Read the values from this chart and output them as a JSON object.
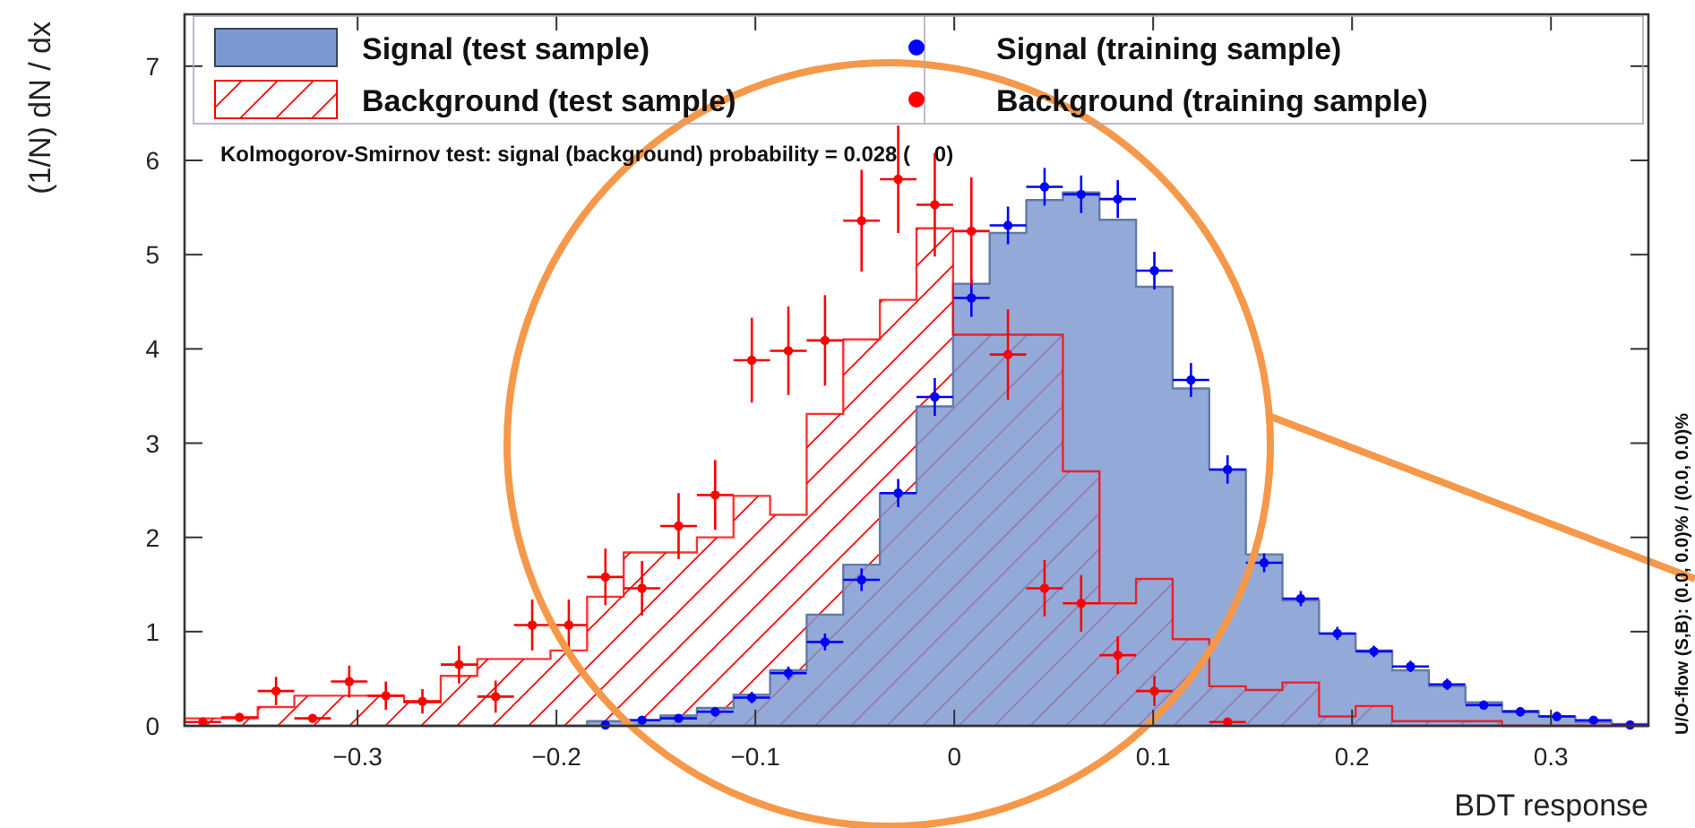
{
  "chart_data": {
    "type": "histogram",
    "xlabel": "BDT response",
    "ylabel": "(1/N) dN / dx",
    "bins": [
      -0.387,
      -0.3686,
      -0.3502,
      -0.3318,
      -0.3134,
      -0.295,
      -0.2766,
      -0.2582,
      -0.2398,
      -0.2214,
      -0.203,
      -0.1846,
      -0.1662,
      -0.1478,
      -0.1294,
      -0.111,
      -0.0926,
      -0.0742,
      -0.0558,
      -0.0374,
      -0.019,
      -0.0006,
      0.0178,
      0.0362,
      0.0546,
      0.073,
      0.0914,
      0.1098,
      0.1282,
      0.1466,
      0.165,
      0.1834,
      0.2018,
      0.2202,
      0.2386,
      0.257,
      0.2754,
      0.2938,
      0.3122,
      0.3306,
      0.349
    ],
    "xlim": [
      -0.387,
      0.349
    ],
    "ylim": [
      0,
      7.55
    ],
    "xticks": [
      -0.3,
      -0.2,
      -0.1,
      0,
      0.1,
      0.2,
      0.3
    ],
    "yticks": [
      0,
      1,
      2,
      3,
      4,
      5,
      6,
      7
    ],
    "legend": "top",
    "grid": false,
    "annotations": [
      "Kolmogorov-Smirnov test: signal (background) probability = 0.028 (    0)",
      "U/O-flow (S,B): (0.0, 0.0)% / (0.0, 0.0)%"
    ],
    "series": [
      {
        "name": "Signal (test sample)",
        "color": "#7b97cf",
        "values": [
          0,
          0,
          0,
          0,
          0,
          0,
          0,
          0,
          0,
          0,
          0,
          0.05,
          0.06,
          0.11,
          0.19,
          0.33,
          0.59,
          1.18,
          1.71,
          2.47,
          3.39,
          4.69,
          5.23,
          5.58,
          5.66,
          5.37,
          4.66,
          3.58,
          2.72,
          1.82,
          1.33,
          0.98,
          0.8,
          0.59,
          0.42,
          0.25,
          0.16,
          0.1,
          0.04,
          0.02
        ]
      },
      {
        "name": "Background (test sample)",
        "color": "#ff0000",
        "values": [
          0.08,
          0.08,
          0.2,
          0.32,
          0.32,
          0.32,
          0.25,
          0.53,
          0.71,
          0.71,
          0.8,
          1.37,
          1.84,
          1.84,
          2.0,
          2.44,
          2.24,
          3.31,
          4.1,
          4.52,
          5.28,
          4.15,
          4.15,
          4.15,
          2.7,
          1.3,
          1.56,
          0.92,
          0.42,
          0.38,
          0.46,
          0.1,
          0.21,
          0.05,
          0.05,
          0.05,
          0,
          0,
          0,
          0
        ]
      },
      {
        "name": "Signal (training sample)",
        "type": "scatter",
        "color": "#0000ff",
        "x": [
          -0.1754,
          -0.157,
          -0.1386,
          -0.1202,
          -0.1018,
          -0.0834,
          -0.065,
          -0.0466,
          -0.0282,
          -0.0098,
          0.0086,
          0.027,
          0.0454,
          0.0638,
          0.0822,
          0.1006,
          0.119,
          0.1374,
          0.1558,
          0.1742,
          0.1926,
          0.211,
          0.2294,
          0.2478,
          0.2662,
          0.2846,
          0.303,
          0.3214,
          0.3398
        ],
        "values": [
          0.01,
          0.06,
          0.08,
          0.15,
          0.3,
          0.56,
          0.89,
          1.55,
          2.47,
          3.49,
          4.54,
          5.31,
          5.72,
          5.64,
          5.59,
          4.83,
          3.67,
          2.72,
          1.73,
          1.35,
          0.98,
          0.79,
          0.63,
          0.44,
          0.22,
          0.15,
          0.1,
          0.06,
          0.01
        ],
        "errors": [
          null,
          null,
          null,
          0.05,
          0.06,
          0.07,
          0.09,
          0.12,
          0.15,
          0.2,
          0.2,
          0.2,
          0.2,
          0.2,
          0.2,
          0.2,
          0.18,
          0.15,
          0.1,
          0.08,
          0.07,
          0.06,
          0.06,
          0.06,
          0.05,
          0.05,
          0.05,
          null,
          null
        ],
        "xerrors": [
          null,
          0.0092,
          0.0092,
          0.0092,
          0.0092,
          0.0092,
          0.0092,
          0.0092,
          0.0092,
          0.0092,
          0.0092,
          0.0092,
          0.0092,
          0.0092,
          0.0092,
          0.0092,
          0.0092,
          0.0092,
          0.0092,
          0.0092,
          0.0092,
          0.0092,
          0.0092,
          0.0092,
          0.0092,
          0.0092,
          0.0092,
          0.0092,
          0.0092
        ]
      },
      {
        "name": "Background (training sample)",
        "type": "scatter",
        "color": "#ff0000",
        "x": [
          -0.3778,
          -0.3594,
          -0.341,
          -0.3226,
          -0.3042,
          -0.2858,
          -0.2674,
          -0.249,
          -0.2306,
          -0.2122,
          -0.1938,
          -0.1754,
          -0.157,
          -0.1386,
          -0.1202,
          -0.1018,
          -0.0834,
          -0.065,
          -0.0466,
          -0.0282,
          -0.0098,
          0.0086,
          0.027,
          0.0454,
          0.0638,
          0.0822,
          0.1006,
          0.1374
        ],
        "values": [
          0.04,
          0.09,
          0.37,
          0.08,
          0.47,
          0.32,
          0.26,
          0.65,
          0.31,
          1.07,
          1.07,
          1.58,
          1.46,
          2.12,
          2.45,
          3.88,
          3.98,
          4.09,
          5.36,
          5.8,
          5.53,
          5.25,
          3.94,
          1.46,
          1.3,
          0.75,
          0.37,
          0.04
        ],
        "errors": [
          null,
          null,
          0.15,
          null,
          0.17,
          0.15,
          0.13,
          0.2,
          0.17,
          0.27,
          0.27,
          0.3,
          0.29,
          0.35,
          0.37,
          0.45,
          0.47,
          0.48,
          0.54,
          0.57,
          0.55,
          0.57,
          0.48,
          0.3,
          0.3,
          0.2,
          0.16,
          0.03
        ],
        "xerrors": [
          0.0092,
          0.0092,
          0.0092,
          0.0092,
          0.0092,
          0.0092,
          0.0092,
          0.0092,
          0.0092,
          0.0092,
          0.0092,
          0.0092,
          0.0092,
          0.0092,
          0.0092,
          0.0092,
          0.0092,
          0.0092,
          0.0092,
          0.0092,
          0.0092,
          0.0092,
          0.0092,
          0.0092,
          0.0092,
          0.0092,
          0.0092,
          0.0092
        ]
      }
    ]
  }
}
